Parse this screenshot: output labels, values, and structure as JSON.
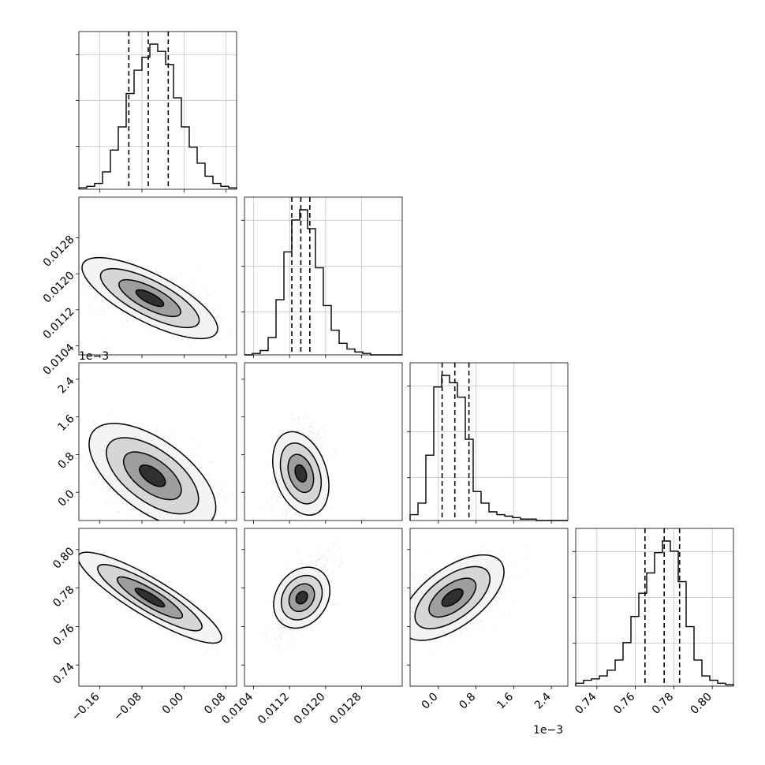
{
  "chart_data": {
    "type": "corner",
    "parameters": [
      {
        "range": [
          -0.2,
          0.1
        ],
        "ticks": [
          -0.16,
          -0.08,
          0.0,
          0.08
        ],
        "tick_labels": [
          "−0.16",
          "−0.08",
          "0.00",
          "0.08"
        ],
        "multiplier": ""
      },
      {
        "range": [
          0.0102,
          0.0137
        ],
        "ticks": [
          0.0104,
          0.0112,
          0.012,
          0.0128
        ],
        "tick_labels": [
          "0.0104",
          "0.0112",
          "0.0120",
          "0.0128"
        ],
        "multiplier": ""
      },
      {
        "range": [
          -0.6,
          2.75
        ],
        "ticks": [
          0.0,
          0.8,
          1.6,
          2.4
        ],
        "tick_labels": [
          "0.0",
          "0.8",
          "1.6",
          "2.4"
        ],
        "multiplier": "1e−3"
      },
      {
        "range": [
          0.729,
          0.811
        ],
        "ticks": [
          0.74,
          0.76,
          0.78,
          0.8
        ],
        "tick_labels": [
          "0.74",
          "0.76",
          "0.78",
          "0.80"
        ],
        "multiplier": ""
      }
    ],
    "quantiles": [
      [
        -0.105,
        -0.068,
        -0.03
      ],
      [
        0.01125,
        0.01145,
        0.01165
      ],
      [
        0.08,
        0.35,
        0.65
      ],
      [
        0.765,
        0.775,
        0.783
      ]
    ],
    "histograms": [
      {
        "counts": [
          0.01,
          0.02,
          0.04,
          0.12,
          0.27,
          0.43,
          0.66,
          0.82,
          0.91,
          1.0,
          0.95,
          0.86,
          0.63,
          0.43,
          0.29,
          0.18,
          0.09,
          0.04,
          0.02,
          0.01
        ]
      },
      {
        "counts": [
          0.0,
          0.01,
          0.03,
          0.12,
          0.38,
          0.71,
          0.93,
          1.0,
          0.87,
          0.6,
          0.34,
          0.17,
          0.08,
          0.04,
          0.02,
          0.01,
          0.0,
          0.0,
          0.0,
          0.0
        ]
      },
      {
        "counts": [
          0.04,
          0.12,
          0.45,
          0.92,
          1.0,
          0.95,
          0.85,
          0.56,
          0.2,
          0.12,
          0.06,
          0.04,
          0.03,
          0.02,
          0.01,
          0.01,
          0.0,
          0.0,
          0.0,
          0.0
        ]
      },
      {
        "counts": [
          0.02,
          0.04,
          0.05,
          0.07,
          0.11,
          0.18,
          0.3,
          0.48,
          0.64,
          0.78,
          0.92,
          1.0,
          0.93,
          0.72,
          0.41,
          0.18,
          0.07,
          0.04,
          0.02,
          0.01
        ]
      }
    ],
    "pairs": [
      {
        "row": 1,
        "col": 0,
        "mean": [
          -0.065,
          0.01146
        ],
        "sd": [
          0.055,
          0.00033
        ],
        "corr": -0.55
      },
      {
        "row": 2,
        "col": 0,
        "mean": [
          -0.06,
          0.35
        ],
        "sd": [
          0.055,
          0.45
        ],
        "corr": -0.5
      },
      {
        "row": 2,
        "col": 1,
        "mean": [
          0.01145,
          0.4
        ],
        "sd": [
          0.00025,
          0.45
        ],
        "corr": 0.2
      },
      {
        "row": 3,
        "col": 0,
        "mean": [
          -0.065,
          0.775
        ],
        "sd": [
          0.055,
          0.009
        ],
        "corr": -0.88
      },
      {
        "row": 3,
        "col": 1,
        "mean": [
          0.01147,
          0.775
        ],
        "sd": [
          0.00027,
          0.009
        ],
        "corr": 0.65
      },
      {
        "row": 3,
        "col": 2,
        "mean": [
          0.3,
          0.775
        ],
        "sd": [
          0.5,
          0.009
        ],
        "corr": 0.5
      }
    ],
    "grid": true,
    "xlabel": "",
    "ylabel": "",
    "title": ""
  }
}
